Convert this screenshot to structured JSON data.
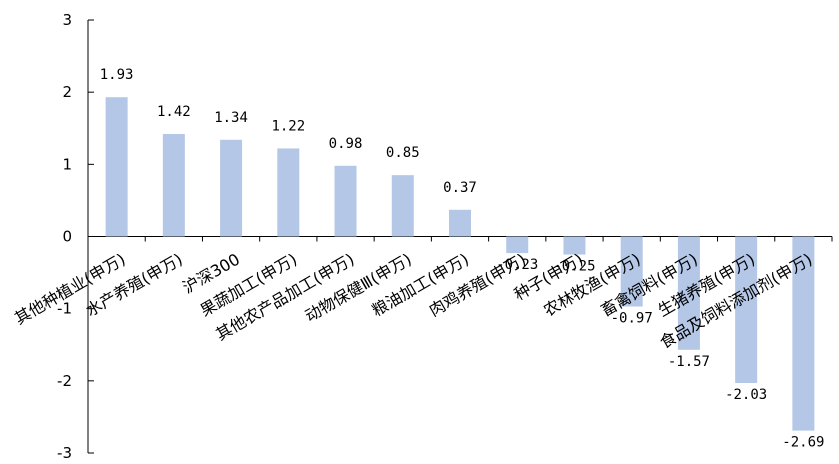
{
  "chart_data": {
    "type": "bar",
    "categories": [
      "其他种植业(申万)",
      "水产养殖(申万)",
      "沪深300",
      "果蔬加工(申万)",
      "其他农产品加工(申万)",
      "动物保健Ⅲ(申万)",
      "粮油加工(申万)",
      "肉鸡养殖(申万)",
      "种子(申万)",
      "农林牧渔(申万)",
      "畜禽饲料(申万)",
      "生猪养殖(申万)",
      "食品及饲料添加剂(申万)"
    ],
    "values": [
      1.93,
      1.42,
      1.34,
      1.22,
      0.98,
      0.85,
      0.37,
      -0.23,
      -0.25,
      -0.97,
      -1.57,
      -2.03,
      -2.69
    ],
    "value_labels": [
      "1.93",
      "1.42",
      "1.34",
      "1.22",
      "0.98",
      "0.85",
      "0.37",
      "-0.23",
      "-0.25",
      "-0.97",
      "-1.57",
      "-2.03",
      "-2.69"
    ],
    "ylim": [
      -3,
      3
    ],
    "yticks": [
      "-3",
      "-2",
      "-1",
      "0",
      "1",
      "2",
      "3"
    ],
    "bar_color": "#b4c7e7",
    "axis_color": "#000000",
    "grid": false,
    "legend": "none"
  }
}
